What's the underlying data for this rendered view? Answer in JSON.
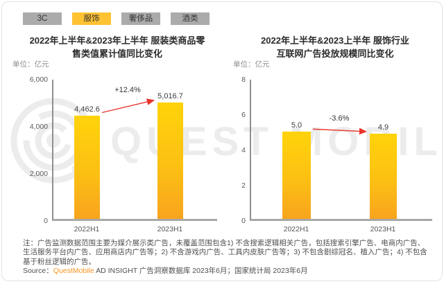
{
  "tabs": [
    {
      "label": "3C",
      "active": false
    },
    {
      "label": "服饰",
      "active": true
    },
    {
      "label": "奢侈品",
      "active": false
    },
    {
      "label": "酒类",
      "active": false
    }
  ],
  "colors": {
    "tab_active": "#ffc233",
    "tab_inactive": "#ababab",
    "bar_gradient_top": "#ffd30b",
    "bar_gradient_bottom": "#f8a41e",
    "arrow_red": "#e8342c",
    "brand_orange": "#f7941e",
    "watermark_gray": "#ececec"
  },
  "watermark": {
    "text": "QUEST MOBILE",
    "icon": "questmobile-radar-logo"
  },
  "chart_data": [
    {
      "type": "bar",
      "title": "2022年上半年&2023年上半年 服装类商品零售类值累计值同比变化",
      "title_lines": [
        "2022年上半年&2023年上半年 服装类商品零",
        "售类值累计值同比变化"
      ],
      "unit_label": "单位：亿元",
      "categories": [
        "2022H1",
        "2023H1"
      ],
      "values": [
        4462.6,
        5016.7
      ],
      "value_labels": [
        "4,462.6",
        "5,016.7"
      ],
      "change_label": "+12.4%",
      "ylim": [
        0,
        6000
      ],
      "yticks": [
        "6,000",
        "4,000",
        "2,000",
        "0"
      ],
      "grid": false,
      "legend": false
    },
    {
      "type": "bar",
      "title": "2022年上半年&2023上半年 服饰行业互联网广告投放规模同比变化",
      "title_lines": [
        "2022年上半年&2023上半年 服饰行业",
        "互联网广告投放规模同比变化"
      ],
      "unit_label": "单位：亿元",
      "categories": [
        "2022H1",
        "2023H1"
      ],
      "values": [
        5.0,
        4.9
      ],
      "value_labels": [
        "5.0",
        "4.9"
      ],
      "change_label": "-3.6%",
      "ylim": [
        0,
        8
      ],
      "yticks": [
        "8",
        "6",
        "4",
        "2",
        "0"
      ],
      "grid": false,
      "legend": false
    }
  ],
  "footer": {
    "note": "注：广告监测数据范围主要为媒介展示类广告，未覆盖范围包含1) 不含搜索逻辑相关广告，包括搜索引擎广告、电商内广告、生活服务平台内广告、应用商店内广告等；2) 不含游戏内广告、工具内皮肤广告等；3) 不包含剧综冠名、植入广告；4) 不包含基于粉丝逻辑的广告。",
    "source_prefix": "Source：",
    "source_brand": "QuestMobile",
    "source_rest": " AD INSIGHT 广告洞察数据库 2023年6月；国家统计局 2023年6月"
  }
}
